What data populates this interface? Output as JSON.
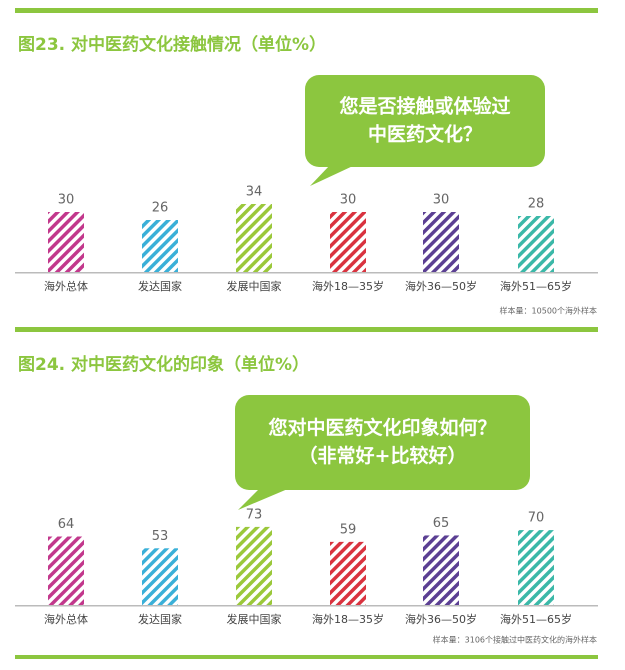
{
  "chart_data": [
    {
      "type": "bar",
      "title": "图23. 对中医药文化接触情况（单位%）",
      "annotation": [
        "您是否接触或体验过",
        "中医药文化？"
      ],
      "note": "样本量：10500个海外样本",
      "categories": [
        "海外总体",
        "发达国家",
        "发展中国家",
        "海外18—35岁",
        "海外36—50岁",
        "海外51—65岁"
      ],
      "values": [
        30,
        26,
        34,
        30,
        30,
        28
      ],
      "colors": [
        "#c2388c",
        "#3ab0d8",
        "#9bc83a",
        "#d9333f",
        "#5b3f93",
        "#3bb8a8"
      ]
    },
    {
      "type": "bar",
      "title": "图24. 对中医药文化的印象（单位%）",
      "annotation": [
        "您对中医药文化印象如何？",
        "（非常好+比较好）"
      ],
      "note": "样本量：3106个接触过中医药文化的海外样本",
      "categories": [
        "海外总体",
        "发达国家",
        "发展中国家",
        "海外18—35岁",
        "海外36—50岁",
        "海外51—65岁"
      ],
      "values": [
        64,
        53,
        73,
        59,
        65,
        70
      ],
      "colors": [
        "#c2388c",
        "#3ab0d8",
        "#9bc83a",
        "#d9333f",
        "#5b3f93",
        "#3bb8a8"
      ]
    }
  ]
}
